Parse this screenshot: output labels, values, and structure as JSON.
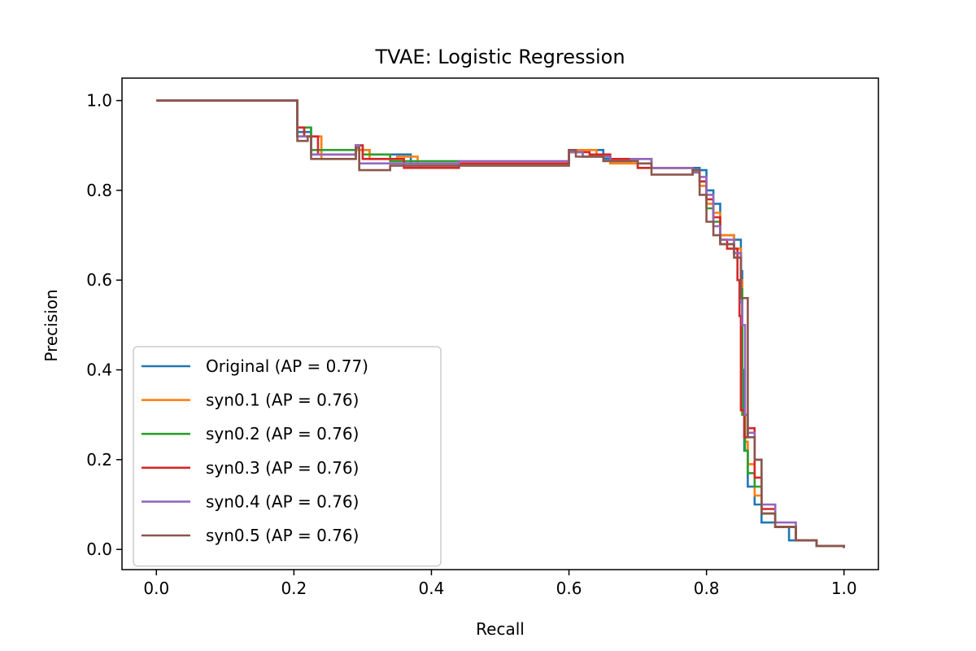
{
  "chart_data": {
    "type": "line",
    "title": "TVAE: Logistic Regression",
    "xlabel": "Recall",
    "ylabel": "Precision",
    "xlim": [
      -0.05,
      1.05
    ],
    "ylim": [
      -0.045,
      1.05
    ],
    "x_ticks": [
      0.0,
      0.2,
      0.4,
      0.6,
      0.8,
      1.0
    ],
    "x_tick_labels": [
      "0.0",
      "0.2",
      "0.4",
      "0.6",
      "0.8",
      "1.0"
    ],
    "y_ticks": [
      0.0,
      0.2,
      0.4,
      0.6,
      0.8,
      1.0
    ],
    "y_tick_labels": [
      "0.0",
      "0.2",
      "0.4",
      "0.6",
      "0.8",
      "1.0"
    ],
    "grid": false,
    "legend_position": "lower-left",
    "series": [
      {
        "name": "Original (AP = 0.77)",
        "color": "#1f77b4",
        "points": [
          [
            0.0,
            1.0
          ],
          [
            0.205,
            1.0
          ],
          [
            0.205,
            0.93
          ],
          [
            0.225,
            0.94
          ],
          [
            0.225,
            0.88
          ],
          [
            0.29,
            0.9
          ],
          [
            0.3,
            0.89
          ],
          [
            0.31,
            0.88
          ],
          [
            0.37,
            0.86
          ],
          [
            0.44,
            0.86
          ],
          [
            0.6,
            0.89
          ],
          [
            0.62,
            0.89
          ],
          [
            0.65,
            0.87
          ],
          [
            0.72,
            0.85
          ],
          [
            0.79,
            0.845
          ],
          [
            0.8,
            0.8
          ],
          [
            0.81,
            0.77
          ],
          [
            0.82,
            0.7
          ],
          [
            0.84,
            0.69
          ],
          [
            0.85,
            0.62
          ],
          [
            0.852,
            0.4
          ],
          [
            0.855,
            0.22
          ],
          [
            0.86,
            0.14
          ],
          [
            0.87,
            0.1
          ],
          [
            0.88,
            0.06
          ],
          [
            0.9,
            0.05
          ],
          [
            0.92,
            0.02
          ],
          [
            0.96,
            0.008
          ],
          [
            1.0,
            0.003
          ]
        ]
      },
      {
        "name": "syn0.1 (AP = 0.76)",
        "color": "#ff7f0e",
        "points": [
          [
            0.0,
            1.0
          ],
          [
            0.205,
            1.0
          ],
          [
            0.205,
            0.92
          ],
          [
            0.24,
            0.9
          ],
          [
            0.24,
            0.87
          ],
          [
            0.29,
            0.89
          ],
          [
            0.31,
            0.87
          ],
          [
            0.35,
            0.875
          ],
          [
            0.38,
            0.86
          ],
          [
            0.44,
            0.86
          ],
          [
            0.6,
            0.89
          ],
          [
            0.64,
            0.88
          ],
          [
            0.66,
            0.86
          ],
          [
            0.72,
            0.85
          ],
          [
            0.78,
            0.845
          ],
          [
            0.79,
            0.81
          ],
          [
            0.8,
            0.77
          ],
          [
            0.81,
            0.75
          ],
          [
            0.82,
            0.7
          ],
          [
            0.84,
            0.67
          ],
          [
            0.85,
            0.6
          ],
          [
            0.852,
            0.3
          ],
          [
            0.856,
            0.24
          ],
          [
            0.86,
            0.19
          ],
          [
            0.87,
            0.12
          ],
          [
            0.88,
            0.08
          ],
          [
            0.9,
            0.05
          ],
          [
            0.93,
            0.02
          ],
          [
            0.96,
            0.008
          ],
          [
            1.0,
            0.003
          ]
        ]
      },
      {
        "name": "syn0.2 (AP = 0.76)",
        "color": "#2ca02c",
        "points": [
          [
            0.0,
            1.0
          ],
          [
            0.205,
            1.0
          ],
          [
            0.205,
            0.92
          ],
          [
            0.215,
            0.94
          ],
          [
            0.225,
            0.89
          ],
          [
            0.29,
            0.9
          ],
          [
            0.3,
            0.88
          ],
          [
            0.34,
            0.865
          ],
          [
            0.44,
            0.86
          ],
          [
            0.6,
            0.885
          ],
          [
            0.62,
            0.875
          ],
          [
            0.66,
            0.87
          ],
          [
            0.7,
            0.85
          ],
          [
            0.78,
            0.84
          ],
          [
            0.79,
            0.82
          ],
          [
            0.8,
            0.76
          ],
          [
            0.81,
            0.73
          ],
          [
            0.82,
            0.68
          ],
          [
            0.84,
            0.66
          ],
          [
            0.85,
            0.58
          ],
          [
            0.852,
            0.3
          ],
          [
            0.856,
            0.22
          ],
          [
            0.86,
            0.17
          ],
          [
            0.87,
            0.14
          ],
          [
            0.88,
            0.08
          ],
          [
            0.9,
            0.05
          ],
          [
            0.93,
            0.02
          ],
          [
            0.96,
            0.008
          ],
          [
            1.0,
            0.003
          ]
        ]
      },
      {
        "name": "syn0.3 (AP = 0.76)",
        "color": "#d62728",
        "points": [
          [
            0.0,
            1.0
          ],
          [
            0.205,
            1.0
          ],
          [
            0.205,
            0.94
          ],
          [
            0.215,
            0.92
          ],
          [
            0.235,
            0.88
          ],
          [
            0.29,
            0.9
          ],
          [
            0.3,
            0.87
          ],
          [
            0.33,
            0.87
          ],
          [
            0.36,
            0.85
          ],
          [
            0.44,
            0.86
          ],
          [
            0.6,
            0.885
          ],
          [
            0.63,
            0.88
          ],
          [
            0.66,
            0.87
          ],
          [
            0.7,
            0.85
          ],
          [
            0.78,
            0.84
          ],
          [
            0.79,
            0.82
          ],
          [
            0.8,
            0.78
          ],
          [
            0.81,
            0.74
          ],
          [
            0.82,
            0.69
          ],
          [
            0.83,
            0.67
          ],
          [
            0.845,
            0.6
          ],
          [
            0.848,
            0.52
          ],
          [
            0.85,
            0.31
          ],
          [
            0.855,
            0.25
          ],
          [
            0.86,
            0.27
          ],
          [
            0.87,
            0.16
          ],
          [
            0.88,
            0.09
          ],
          [
            0.9,
            0.05
          ],
          [
            0.93,
            0.02
          ],
          [
            0.96,
            0.008
          ],
          [
            1.0,
            0.003
          ]
        ]
      },
      {
        "name": "syn0.4 (AP = 0.76)",
        "color": "#9467bd",
        "points": [
          [
            0.0,
            1.0
          ],
          [
            0.205,
            1.0
          ],
          [
            0.205,
            0.92
          ],
          [
            0.225,
            0.88
          ],
          [
            0.29,
            0.9
          ],
          [
            0.295,
            0.86
          ],
          [
            0.33,
            0.86
          ],
          [
            0.44,
            0.865
          ],
          [
            0.6,
            0.885
          ],
          [
            0.62,
            0.875
          ],
          [
            0.66,
            0.865
          ],
          [
            0.69,
            0.87
          ],
          [
            0.72,
            0.85
          ],
          [
            0.78,
            0.84
          ],
          [
            0.79,
            0.83
          ],
          [
            0.8,
            0.79
          ],
          [
            0.81,
            0.72
          ],
          [
            0.82,
            0.69
          ],
          [
            0.84,
            0.66
          ],
          [
            0.85,
            0.55
          ],
          [
            0.852,
            0.5
          ],
          [
            0.856,
            0.3
          ],
          [
            0.86,
            0.26
          ],
          [
            0.87,
            0.2
          ],
          [
            0.88,
            0.1
          ],
          [
            0.9,
            0.06
          ],
          [
            0.93,
            0.02
          ],
          [
            0.96,
            0.008
          ],
          [
            1.0,
            0.003
          ]
        ]
      },
      {
        "name": "syn0.5 (AP = 0.76)",
        "color": "#8c564b",
        "points": [
          [
            0.0,
            1.0
          ],
          [
            0.205,
            1.0
          ],
          [
            0.205,
            0.91
          ],
          [
            0.22,
            0.92
          ],
          [
            0.225,
            0.87
          ],
          [
            0.29,
            0.895
          ],
          [
            0.295,
            0.845
          ],
          [
            0.34,
            0.855
          ],
          [
            0.44,
            0.855
          ],
          [
            0.6,
            0.89
          ],
          [
            0.61,
            0.875
          ],
          [
            0.65,
            0.865
          ],
          [
            0.7,
            0.86
          ],
          [
            0.72,
            0.835
          ],
          [
            0.78,
            0.845
          ],
          [
            0.79,
            0.79
          ],
          [
            0.8,
            0.73
          ],
          [
            0.81,
            0.7
          ],
          [
            0.82,
            0.68
          ],
          [
            0.84,
            0.65
          ],
          [
            0.85,
            0.56
          ],
          [
            0.856,
            0.56
          ],
          [
            0.86,
            0.25
          ],
          [
            0.87,
            0.2
          ],
          [
            0.88,
            0.08
          ],
          [
            0.9,
            0.05
          ],
          [
            0.93,
            0.02
          ],
          [
            0.96,
            0.008
          ],
          [
            1.0,
            0.003
          ]
        ]
      }
    ]
  }
}
